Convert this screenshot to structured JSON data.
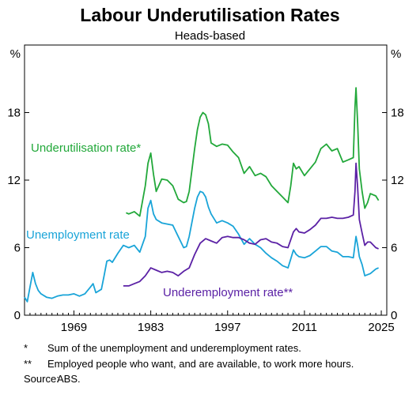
{
  "chart_data": {
    "type": "line",
    "title": "Labour Underutilisation Rates",
    "subtitle": "Heads-based",
    "y_unit_left": "%",
    "y_unit_right": "%",
    "xlim": [
      1960,
      2026
    ],
    "ylim": [
      0,
      24
    ],
    "x_ticks": [
      1969,
      1983,
      1997,
      2011,
      2025
    ],
    "y_ticks": [
      0,
      6,
      12,
      18
    ],
    "grid": false,
    "series": [
      {
        "name": "Underutilisation rate*",
        "color": "#22a83a",
        "x": [
          1978.5,
          1979,
          1980,
          1981,
          1982,
          1982.5,
          1983,
          1983.5,
          1984,
          1985,
          1986,
          1987,
          1988,
          1989,
          1989.5,
          1990,
          1991,
          1991.5,
          1992,
          1992.5,
          1993,
          1993.5,
          1994,
          1995,
          1996,
          1997,
          1998,
          1999,
          2000,
          2001,
          2002,
          2003,
          2004,
          2005,
          2006,
          2007,
          2008,
          2008.5,
          2009,
          2009.5,
          2010,
          2011,
          2012,
          2013,
          2014,
          2015,
          2016,
          2017,
          2018,
          2019,
          2019.9,
          2020.2,
          2020.4,
          2020.7,
          2021,
          2021.5,
          2022,
          2022.5,
          2023,
          2024,
          2024.5
        ],
        "values": [
          9.1,
          9.0,
          9.2,
          8.8,
          11.5,
          13.5,
          14.4,
          12.5,
          11.0,
          12.1,
          12.0,
          11.5,
          10.3,
          10.0,
          10.1,
          11.0,
          14.8,
          16.5,
          17.6,
          18.0,
          17.8,
          17.0,
          15.3,
          15.0,
          15.2,
          15.1,
          14.5,
          14.0,
          12.6,
          13.2,
          12.4,
          12.6,
          12.3,
          11.5,
          11.0,
          10.5,
          10.0,
          11.5,
          13.5,
          13.0,
          13.2,
          12.4,
          13.0,
          13.6,
          14.8,
          15.2,
          14.6,
          14.8,
          13.6,
          13.8,
          14.0,
          18.5,
          20.2,
          17.0,
          13.0,
          11.0,
          9.5,
          10.0,
          10.8,
          10.6,
          10.2
        ]
      },
      {
        "name": "Unemployment rate",
        "color": "#19a4d8",
        "x": [
          1960,
          1960.5,
          1961,
          1961.5,
          1962,
          1962.5,
          1963,
          1964,
          1965,
          1966,
          1967,
          1968,
          1969,
          1970,
          1971,
          1972,
          1972.5,
          1973,
          1974,
          1974.5,
          1975,
          1975.5,
          1976,
          1977,
          1978,
          1979,
          1980,
          1981,
          1982,
          1982.5,
          1983,
          1983.5,
          1984,
          1985,
          1986,
          1987,
          1988,
          1989,
          1989.5,
          1990,
          1991,
          1991.5,
          1992,
          1992.5,
          1993,
          1993.5,
          1994,
          1995,
          1996,
          1997,
          1998,
          1999,
          2000,
          2001,
          2002,
          2003,
          2004,
          2005,
          2006,
          2007,
          2008,
          2008.5,
          2009,
          2009.5,
          2010,
          2011,
          2012,
          2013,
          2014,
          2015,
          2016,
          2017,
          2018,
          2019,
          2019.9,
          2020.4,
          2020.7,
          2021,
          2021.5,
          2022,
          2022.5,
          2023,
          2024,
          2024.5
        ],
        "values": [
          1.6,
          1.2,
          2.5,
          3.8,
          2.8,
          2.2,
          1.9,
          1.6,
          1.5,
          1.7,
          1.8,
          1.8,
          1.9,
          1.7,
          1.9,
          2.5,
          2.8,
          2.0,
          2.3,
          3.5,
          4.8,
          4.9,
          4.7,
          5.5,
          6.2,
          6.0,
          6.2,
          5.6,
          7.0,
          9.5,
          10.2,
          9.0,
          8.5,
          8.2,
          8.1,
          8.0,
          7.0,
          6.0,
          6.1,
          7.0,
          9.5,
          10.5,
          11.0,
          10.9,
          10.5,
          9.6,
          9.0,
          8.2,
          8.4,
          8.2,
          7.9,
          7.2,
          6.3,
          6.8,
          6.3,
          6.0,
          5.5,
          5.1,
          4.8,
          4.4,
          4.2,
          5.0,
          5.8,
          5.4,
          5.2,
          5.1,
          5.3,
          5.7,
          6.1,
          6.1,
          5.7,
          5.6,
          5.2,
          5.2,
          5.1,
          7.0,
          6.2,
          5.2,
          4.5,
          3.5,
          3.6,
          3.7,
          4.1,
          4.2
        ]
      },
      {
        "name": "Underemployment rate**",
        "color": "#5b21a5",
        "x": [
          1978,
          1979,
          1980,
          1981,
          1982,
          1983,
          1984,
          1985,
          1986,
          1987,
          1988,
          1989,
          1990,
          1991,
          1992,
          1993,
          1994,
          1995,
          1996,
          1997,
          1998,
          1999,
          2000,
          2001,
          2002,
          2003,
          2004,
          2005,
          2006,
          2007,
          2008,
          2009,
          2009.5,
          2010,
          2011,
          2012,
          2013,
          2014,
          2015,
          2016,
          2017,
          2018,
          2019,
          2019.9,
          2020.2,
          2020.4,
          2020.7,
          2021,
          2021.5,
          2022,
          2022.5,
          2023,
          2024,
          2024.5
        ],
        "values": [
          2.6,
          2.6,
          2.8,
          3.0,
          3.5,
          4.2,
          4.0,
          3.8,
          3.9,
          3.8,
          3.5,
          3.9,
          4.2,
          5.4,
          6.4,
          6.8,
          6.6,
          6.4,
          6.9,
          7.0,
          6.9,
          6.9,
          6.7,
          6.4,
          6.3,
          6.7,
          6.8,
          6.5,
          6.4,
          6.1,
          6.0,
          7.4,
          7.7,
          7.4,
          7.3,
          7.6,
          8.0,
          8.6,
          8.6,
          8.7,
          8.6,
          8.6,
          8.7,
          8.9,
          11.0,
          13.5,
          11.3,
          8.5,
          7.3,
          6.2,
          6.5,
          6.5,
          6.0,
          5.9
        ]
      }
    ]
  },
  "labels": {
    "underutilisation": "Underutilisation rate*",
    "unemployment": "Unemployment rate",
    "underemployment": "Underemployment rate**"
  },
  "notes": [
    {
      "mark": "*",
      "text": "Sum of the unemployment and underemployment rates."
    },
    {
      "mark": "**",
      "text": "Employed people who want, and are available, to work more hours."
    }
  ],
  "source": {
    "label": "Source:",
    "text": "ABS."
  }
}
